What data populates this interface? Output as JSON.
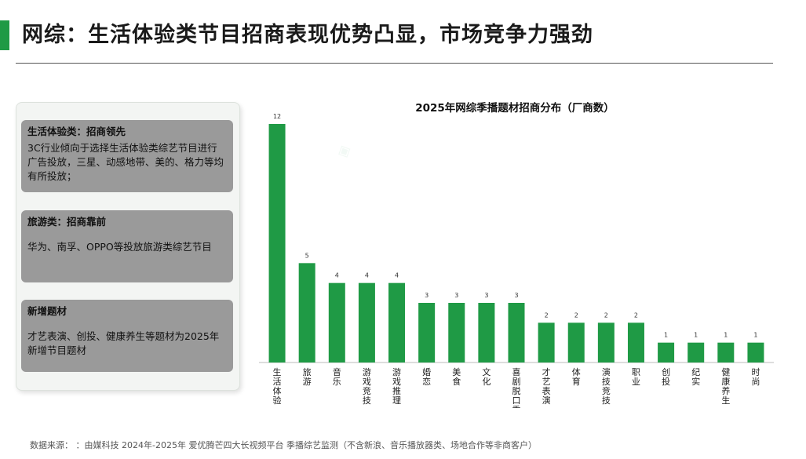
{
  "header": {
    "title": "网综：生活体验类节目招商表现优势凸显，市场竞争力强劲"
  },
  "cards": [
    {
      "title": "生活体验类：招商领先",
      "body": "3C行业倾向于选择生活体验类综艺节目进行广告投放，三星、动感地带、美的、格力等均有所投放；"
    },
    {
      "title": "旅游类：招商靠前",
      "body": "华为、南孚、OPPO等投放旅游类综艺节目"
    },
    {
      "title": "新增题材",
      "body": "才艺表演、创投、健康养生等题材为2025年新增节目题材"
    }
  ],
  "chart_data": {
    "type": "bar",
    "title": "2025年网综季播题材招商分布（厂商数）",
    "categories": [
      "生活体验",
      "旅游",
      "音乐",
      "游戏竞技",
      "游戏推理",
      "婚恋",
      "美食",
      "文化",
      "喜剧脱口秀",
      "才艺表演",
      "体育",
      "演技竞技",
      "职业",
      "创投",
      "纪实",
      "健康养生",
      "时尚"
    ],
    "values": [
      12,
      5,
      4,
      4,
      4,
      3,
      3,
      3,
      3,
      2,
      2,
      2,
      2,
      1,
      1,
      1,
      1
    ],
    "ylim": [
      0,
      12
    ],
    "grid": false,
    "legend": "none",
    "bar_color": "#1f9a45",
    "xlabel": "",
    "ylabel": ""
  },
  "footer": {
    "source": "数据来源： ：由媒科技 2024年-2025年 爱优腾芒四大长视频平台 季播综艺监测（不含新浪、音乐播放器类、场地合作等非商客户）"
  }
}
